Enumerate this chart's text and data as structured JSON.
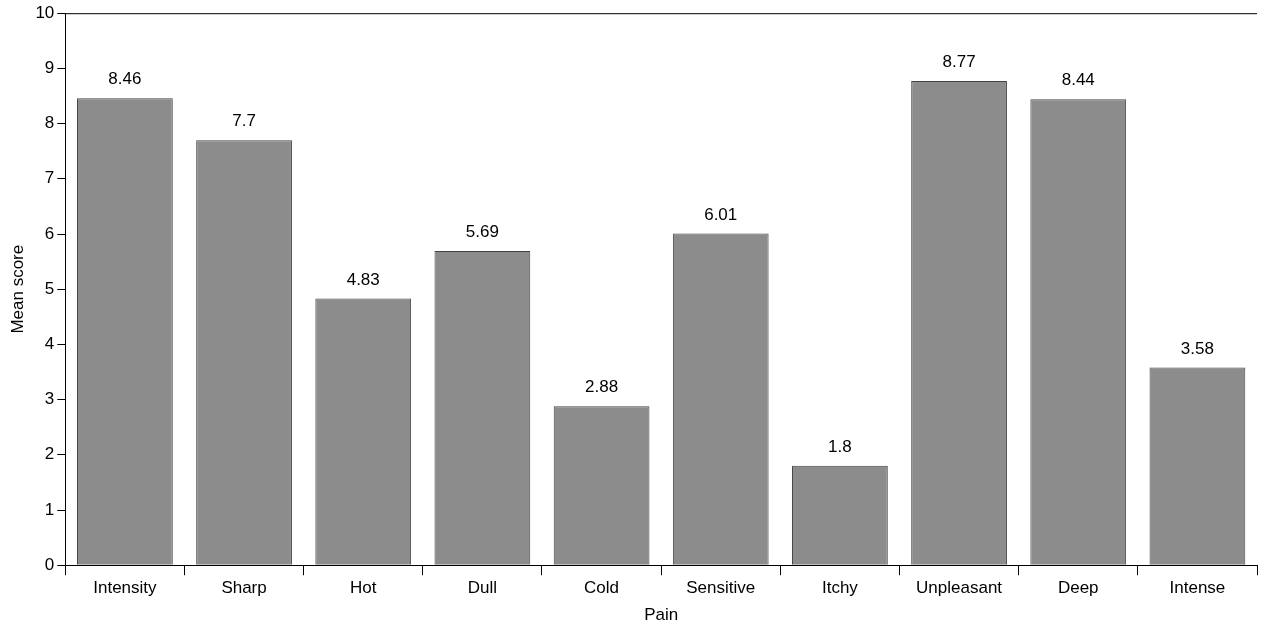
{
  "chart_data": {
    "type": "bar",
    "xlabel": "Pain",
    "ylabel": "Mean score",
    "categories": [
      "Intensity",
      "Sharp",
      "Hot",
      "Dull",
      "Cold",
      "Sensitive",
      "Itchy",
      "Unpleasant",
      "Deep",
      "Intense"
    ],
    "values": [
      8.46,
      7.7,
      4.83,
      5.69,
      2.88,
      6.01,
      1.8,
      8.77,
      8.44,
      3.58
    ],
    "color": "#8c8c8c",
    "ylim": [
      0,
      10
    ],
    "yticks": [
      0,
      1,
      2,
      3,
      4,
      5,
      6,
      7,
      8,
      9,
      10
    ],
    "grid": false,
    "legend": false,
    "data_labels": true
  }
}
